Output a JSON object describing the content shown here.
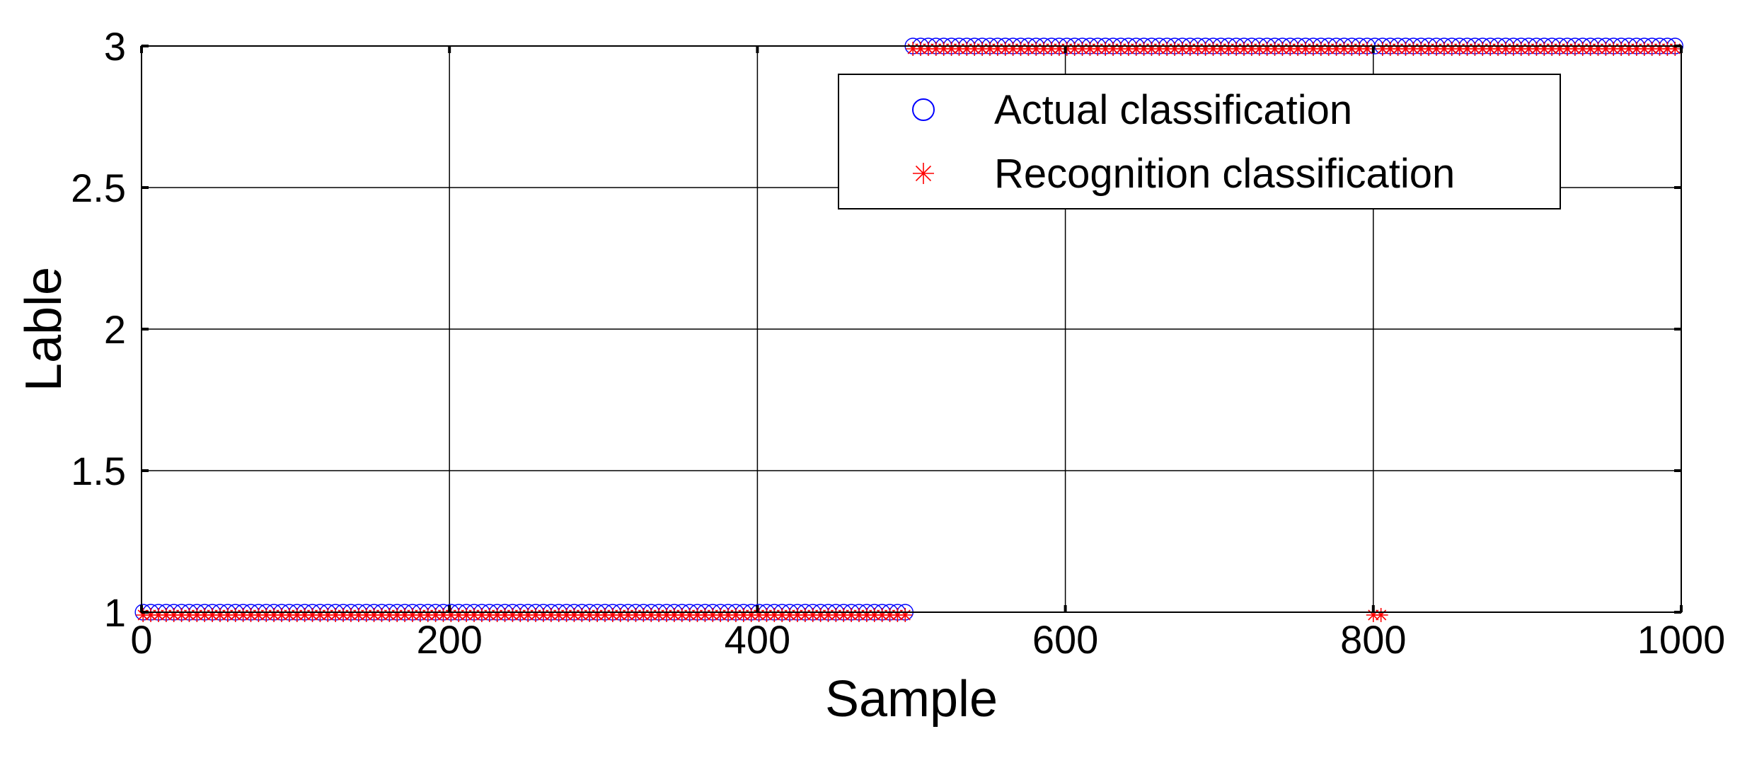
{
  "chart_data": {
    "type": "scatter",
    "title": "",
    "xlabel": "Sample",
    "ylabel": "Lable",
    "xlim": [
      0,
      1000
    ],
    "ylim": [
      1,
      3
    ],
    "x_ticks": [
      "0",
      "200",
      "400",
      "600",
      "800",
      "1000"
    ],
    "y_ticks": [
      "1",
      "1.5",
      "2",
      "2.5",
      "3"
    ],
    "grid": true,
    "legend_position": "top-right",
    "series": [
      {
        "name": "Actual classification",
        "marker": "circle",
        "color": "#0000ff",
        "segments": [
          {
            "x_start": 1,
            "x_end": 500,
            "y": 1
          },
          {
            "x_start": 501,
            "x_end": 1000,
            "y": 3
          }
        ]
      },
      {
        "name": "Recognition classification",
        "marker": "asterisk",
        "color": "#ff0000",
        "segments": [
          {
            "x_start": 1,
            "x_end": 500,
            "y": 1
          },
          {
            "x_start": 501,
            "x_end": 799,
            "y": 3
          },
          {
            "x_start": 800,
            "x_end": 805,
            "y": 1
          },
          {
            "x_start": 806,
            "x_end": 1000,
            "y": 3
          }
        ]
      }
    ]
  }
}
